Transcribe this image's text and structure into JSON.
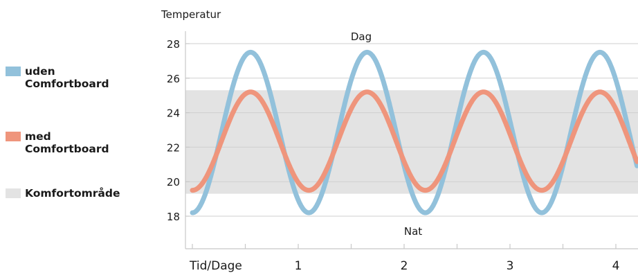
{
  "chart_data": {
    "type": "line",
    "ylabel": "Temperatur",
    "xlabel": "Tid/Dage",
    "ylim": [
      17,
      28.5
    ],
    "xlim": [
      0,
      4.2
    ],
    "yticks": [
      18,
      20,
      22,
      24,
      26,
      28
    ],
    "xticks": [
      {
        "value": 0,
        "label": "Tid/Dage"
      },
      {
        "value": 1,
        "label": "1"
      },
      {
        "value": 2,
        "label": "2"
      },
      {
        "value": 3,
        "label": "3"
      },
      {
        "value": 4,
        "label": "4"
      }
    ],
    "grid": true,
    "legend_placement": "left",
    "annotations": {
      "top": "Dag",
      "bottom": "Nat"
    },
    "comfort_zone": {
      "name": "Komfortområde",
      "ymin": 19.3,
      "ymax": 25.3,
      "color": "#e3e3e3"
    },
    "series": [
      {
        "name": "uden\nComfortboard",
        "color": "#92c1db",
        "min": 18.2,
        "max": 27.5,
        "period": 1.1,
        "first_peak": 0.55
      },
      {
        "name": "med\nComfortboard",
        "color": "#ef957c",
        "min": 19.5,
        "max": 25.2,
        "period": 1.1,
        "first_peak": 0.55
      }
    ]
  }
}
